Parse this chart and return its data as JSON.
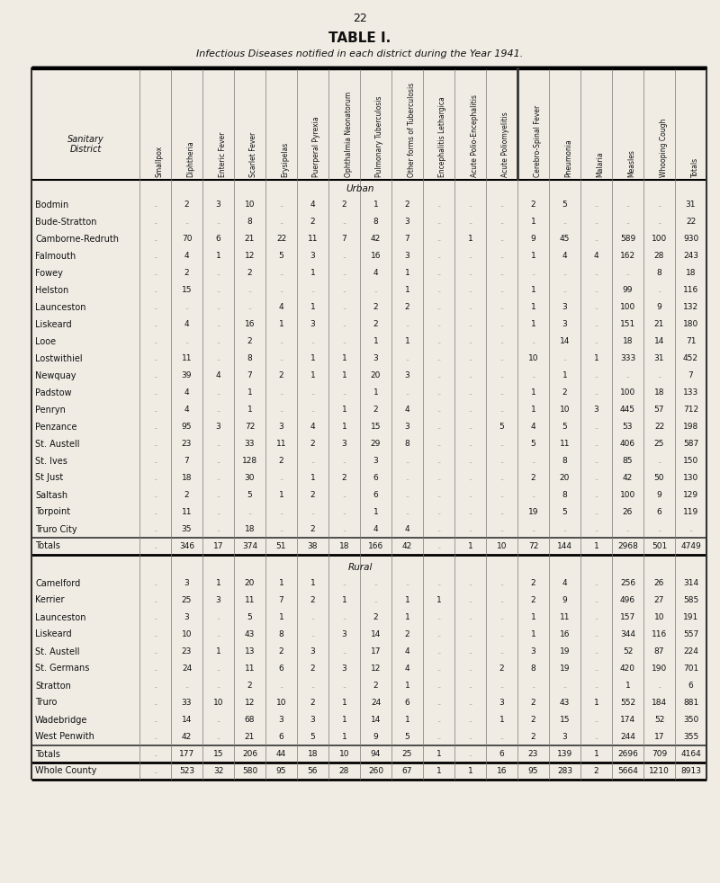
{
  "page_number": "22",
  "title": "TABLE I.",
  "subtitle": "Infectious Diseases notified in each district during the Year 1941.",
  "col_headers": [
    "Smallpox",
    "Diphtheria",
    "Enteric Fever",
    "Scarlet Fever",
    "Erysipelas",
    "Puerperal Pyrexia",
    "Ophthalmia Neonatorum",
    "Pulmonary Tuberculosis",
    "Other forms of Tuberculosis",
    "Encephalitis Lethargica",
    "Acute Polio-Encephalitis",
    "Acute Poliomyelitis",
    "Cerebro-Spinal Fever",
    "Pneumonia",
    "Malaria",
    "Measles",
    "Whooping Cough",
    "Totals"
  ],
  "urban_header": "Urban",
  "urban_rows": [
    [
      "Bodmin",
      "..",
      "2",
      "3",
      "10",
      "..",
      "4",
      "2",
      "1",
      "2",
      "..",
      "..",
      "..",
      "2",
      "5",
      "..",
      "..",
      "..",
      "31"
    ],
    [
      "Bude-Stratton",
      "..",
      "..",
      "..",
      "8",
      "..",
      "2",
      "..",
      "8",
      "3",
      "..",
      "..",
      "..",
      "1",
      "..",
      "..",
      "..",
      "..",
      "22"
    ],
    [
      "Camborne-Redruth",
      "..",
      "70",
      "6",
      "21",
      "22",
      "11",
      "7",
      "42",
      "7",
      "..",
      "1",
      "..",
      "9",
      "45",
      "..",
      "589",
      "100",
      "930"
    ],
    [
      "Falmouth",
      "..",
      "4",
      "1",
      "12",
      "5",
      "3",
      "..",
      "16",
      "3",
      "..",
      "..",
      "..",
      "1",
      "4",
      "4",
      "162",
      "28",
      "243"
    ],
    [
      "Fowey",
      "..",
      "2",
      "..",
      "2",
      "..",
      "1",
      "..",
      "4",
      "1",
      "..",
      "..",
      "..",
      "..",
      "..",
      "..",
      "..",
      "8",
      "18"
    ],
    [
      "Helston",
      "..",
      "15",
      "..",
      "..",
      "..",
      "..",
      "..",
      "..",
      "1",
      "..",
      "..",
      "..",
      "1",
      "..",
      "..",
      "99",
      "..",
      "116"
    ],
    [
      "Launceston",
      "..",
      "..",
      "..",
      "..",
      "4",
      "1",
      "..",
      "2",
      "2",
      "..",
      "..",
      "..",
      "1",
      "3",
      "..",
      "100",
      "9",
      "132"
    ],
    [
      "Liskeard",
      "..",
      "4",
      "..",
      "16",
      "1",
      "3",
      "..",
      "2",
      "..",
      "..",
      "..",
      "..",
      "1",
      "3",
      "..",
      "151",
      "21",
      "180"
    ],
    [
      "Looe",
      "..",
      "..",
      "..",
      "2",
      "..",
      "..",
      "..",
      "1",
      "1",
      "..",
      "..",
      "..",
      "..",
      "14",
      "..",
      "18",
      "14",
      "71"
    ],
    [
      "Lostwithiel",
      "..",
      "11",
      "..",
      "8",
      "..",
      "1",
      "1",
      "3",
      "..",
      "..",
      "..",
      "..",
      "10",
      "..",
      "1",
      "333",
      "31",
      "452"
    ],
    [
      "Newquay",
      "..",
      "39",
      "4",
      "7",
      "2",
      "1",
      "1",
      "20",
      "3",
      "..",
      "..",
      "..",
      "..",
      "1",
      "..",
      "..",
      "..",
      "7"
    ],
    [
      "Padstow",
      "..",
      "4",
      "..",
      "1",
      "..",
      "..",
      "..",
      "1",
      "..",
      "..",
      "..",
      "..",
      "1",
      "2",
      "..",
      "100",
      "18",
      "133"
    ],
    [
      "Penryn",
      "..",
      "4",
      "..",
      "1",
      "..",
      "..",
      "1",
      "2",
      "4",
      "..",
      "..",
      "..",
      "1",
      "10",
      "3",
      "445",
      "57",
      "712"
    ],
    [
      "Penzance",
      "..",
      "95",
      "3",
      "72",
      "3",
      "4",
      "1",
      "15",
      "3",
      "..",
      "..",
      "5",
      "4",
      "5",
      "..",
      "53",
      "22",
      "198"
    ],
    [
      "St. Austell",
      "..",
      "23",
      "..",
      "33",
      "11",
      "2",
      "3",
      "29",
      "8",
      "..",
      "..",
      "..",
      "5",
      "11",
      "..",
      "406",
      "25",
      "587"
    ],
    [
      "St. Ives",
      "..",
      "7",
      "..",
      "128",
      "2",
      "..",
      "..",
      "3",
      "..",
      "..",
      "..",
      "..",
      "..",
      "8",
      "..",
      "85",
      "..",
      "150"
    ],
    [
      "St Just",
      "..",
      "18",
      "..",
      "30",
      "..",
      "1",
      "2",
      "6",
      "..",
      "..",
      "..",
      "..",
      "2",
      "20",
      "..",
      "42",
      "50",
      "130"
    ],
    [
      "Saltash",
      "..",
      "2",
      "..",
      "5",
      "1",
      "2",
      "..",
      "6",
      "..",
      "..",
      "..",
      "..",
      "..",
      "8",
      "..",
      "100",
      "9",
      "129"
    ],
    [
      "Torpoint",
      "..",
      "11",
      "..",
      "..",
      "..",
      "..",
      "..",
      "1",
      "..",
      "..",
      "..",
      "..",
      "19",
      "5",
      "..",
      "26",
      "6",
      "119"
    ],
    [
      "Truro City",
      "..",
      "35",
      "..",
      "18",
      "..",
      "2",
      "..",
      "4",
      "4",
      "..",
      "..",
      "..",
      "..",
      "..",
      "..",
      "..",
      "..",
      ".."
    ]
  ],
  "urban_totals": [
    "Totals",
    "..",
    "346",
    "17",
    "374",
    "51",
    "38",
    "18",
    "166",
    "42",
    "..",
    "1",
    "10",
    "72",
    "144",
    "1",
    "2968",
    "501",
    "4749"
  ],
  "rural_header": "Rural",
  "rural_rows": [
    [
      "Camelford",
      "..",
      "3",
      "1",
      "20",
      "1",
      "1",
      "..",
      "..",
      "..",
      "..",
      "..",
      "..",
      "2",
      "4",
      "..",
      "256",
      "26",
      "314"
    ],
    [
      "Kerrier",
      "..",
      "25",
      "3",
      "11",
      "7",
      "2",
      "1",
      "..",
      "1",
      "1",
      "..",
      "..",
      "2",
      "9",
      "..",
      "496",
      "27",
      "585"
    ],
    [
      "Launceston",
      "..",
      "3",
      "..",
      "5",
      "1",
      "..",
      "..",
      "2",
      "1",
      "..",
      "..",
      "..",
      "1",
      "11",
      "..",
      "344",
      "116",
      "557"
    ],
    [
      "Liskeard",
      "..",
      "10",
      "..",
      "43",
      "8",
      "..",
      "3",
      "14",
      "2",
      "..",
      "..",
      "..",
      "3",
      "19",
      "..",
      "52",
      "87",
      "224"
    ],
    [
      "St. Austell",
      "..",
      "23",
      "1",
      "13",
      "2",
      "3",
      "..",
      "17",
      "4",
      "..",
      "..",
      "..",
      "2",
      "8",
      "19",
      "420",
      "190",
      "701"
    ],
    [
      "St. Germans",
      "..",
      "24",
      "..",
      "11",
      "6",
      "2",
      "3",
      "12",
      "4",
      "..",
      "..",
      "..",
      "..",
      "..",
      "..",
      "1",
      "..",
      "6"
    ],
    [
      "Stratton",
      "..",
      "33",
      "10",
      "12",
      "10",
      "2",
      "1",
      "24",
      "6",
      "..",
      "..",
      "3",
      "2",
      "43",
      "1",
      "552",
      "184",
      "881"
    ],
    [
      "Truro",
      "..",
      "14",
      "..",
      "68",
      "3",
      "3",
      "1",
      "14",
      "1",
      "..",
      "..",
      "1",
      "2",
      "15",
      "..",
      "174",
      "52",
      "350"
    ],
    [
      "Wadebridge",
      "..",
      "42",
      "..",
      "21",
      "6",
      "5",
      "1",
      "9",
      "5",
      "..",
      "..",
      "..",
      "2",
      "3",
      "..",
      "244",
      "17",
      "355"
    ],
    [
      "West Penwith",
      "..",
      "..",
      "..",
      "..",
      "..",
      "..",
      "..",
      "..",
      "..",
      "..",
      "..",
      "..",
      "..",
      "..",
      "..",
      "..",
      "..",
      ".."
    ]
  ],
  "rural_totals": [
    "Totals",
    "..",
    "177",
    "15",
    "206",
    "44",
    "18",
    "10",
    "94",
    "25",
    "1",
    "..",
    "6",
    "23",
    "139",
    "1",
    "2696",
    "709",
    "4164"
  ],
  "whole_county_row": [
    "Whole County",
    "..",
    "523",
    "32",
    "580",
    "95",
    "56",
    "28",
    "260",
    "67",
    "1",
    "1",
    "16",
    "95",
    "283",
    "2",
    "5664",
    "1210",
    "8913"
  ],
  "bg_color": "#f0ece4",
  "text_color": "#111111"
}
